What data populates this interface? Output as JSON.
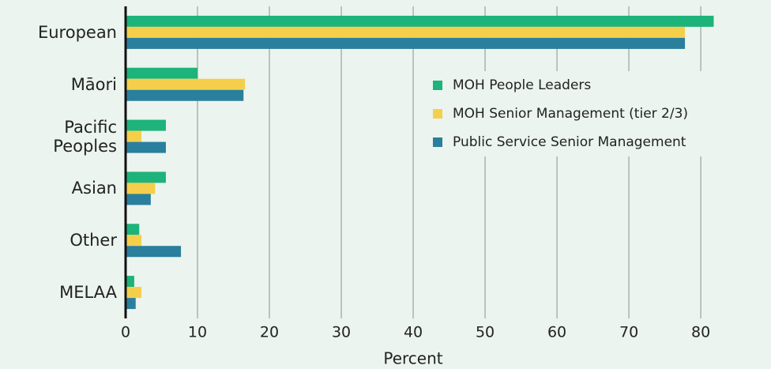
{
  "chart_data": {
    "type": "barh",
    "categories": [
      "European",
      "Māori",
      "Pacific Peoples",
      "Asian",
      "Other",
      "MELAA"
    ],
    "series": [
      {
        "name": "MOH People Leaders",
        "color": "#1db37a",
        "values": [
          81.8,
          10.0,
          5.6,
          5.6,
          1.9,
          1.2
        ]
      },
      {
        "name": "MOH Senior Management (tier 2/3)",
        "color": "#f5cf4b",
        "values": [
          77.8,
          16.6,
          2.2,
          4.1,
          2.2,
          2.2
        ]
      },
      {
        "name": "Public Service Senior Management",
        "color": "#2a7f9c",
        "values": [
          77.8,
          16.4,
          5.6,
          3.5,
          7.7,
          1.4
        ]
      }
    ],
    "xlabel": "Percent",
    "xlim": [
      0,
      89
    ],
    "xticks": [
      0,
      10,
      20,
      30,
      40,
      50,
      60,
      70,
      80
    ],
    "grid": true,
    "legend": "upper right"
  }
}
